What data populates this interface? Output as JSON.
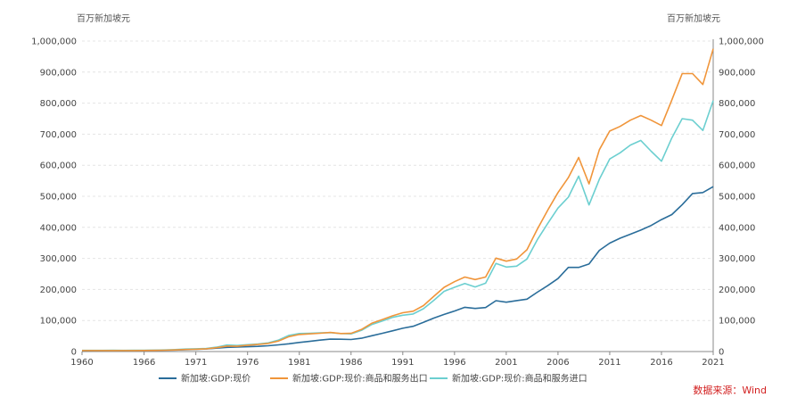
{
  "colors": {
    "gdp": "#2a6d9a",
    "exports": "#f0953a",
    "imports": "#6ccfd0",
    "grid": "#e4e4e4",
    "axis": "#888888",
    "source": "#d21f1f"
  },
  "source_text": "数据来源：Wind",
  "chart_data": {
    "type": "line",
    "y_unit_left": "百万新加坡元",
    "y_unit_right": "百万新加坡元",
    "xlim": [
      1960,
      2021
    ],
    "ylim": [
      0,
      1000000
    ],
    "x_ticks": [
      "1960",
      "1966",
      "1971",
      "1976",
      "1981",
      "1986",
      "1991",
      "1996",
      "2001",
      "2006",
      "2011",
      "2016",
      "2021"
    ],
    "y_ticks": [
      "0",
      "100,000",
      "200,000",
      "300,000",
      "400,000",
      "500,000",
      "600,000",
      "700,000",
      "800,000",
      "900,000",
      "1,000,000"
    ],
    "grid": true,
    "legend_position": "bottom",
    "x": [
      1960,
      1961,
      1962,
      1963,
      1964,
      1965,
      1966,
      1967,
      1968,
      1969,
      1970,
      1971,
      1972,
      1973,
      1974,
      1975,
      1976,
      1977,
      1978,
      1979,
      1980,
      1981,
      1982,
      1983,
      1984,
      1985,
      1986,
      1987,
      1988,
      1989,
      1990,
      1991,
      1992,
      1993,
      1994,
      1995,
      1996,
      1997,
      1998,
      1999,
      2000,
      2001,
      2002,
      2003,
      2004,
      2005,
      2006,
      2007,
      2008,
      2009,
      2010,
      2011,
      2012,
      2013,
      2014,
      2015,
      2016,
      2017,
      2018,
      2019,
      2020,
      2021
    ],
    "series": [
      {
        "name": "新加坡:GDP:现价",
        "color_key": "gdp",
        "values": [
          2150,
          2330,
          2520,
          2790,
          2720,
          2960,
          3330,
          3750,
          4310,
          5020,
          5800,
          6800,
          8200,
          11000,
          13600,
          14600,
          15500,
          16800,
          18700,
          21500,
          25100,
          29300,
          32700,
          36900,
          40000,
          39600,
          38900,
          42700,
          50900,
          58600,
          66800,
          75000,
          81400,
          94000,
          107800,
          119500,
          130400,
          142500,
          138700,
          141600,
          163800,
          158800,
          164200,
          168700,
          191000,
          212000,
          235000,
          271000,
          271000,
          282000,
          326000,
          349000,
          365000,
          378000,
          391000,
          406000,
          425000,
          441000,
          473000,
          509000,
          512000,
          531000
        ]
      },
      {
        "name": "新加坡:GDP:现价:商品和服务出口",
        "color_key": "exports",
        "values": [
          3200,
          3100,
          3050,
          3100,
          3100,
          3200,
          3400,
          3700,
          4200,
          5300,
          6500,
          7400,
          8800,
          12300,
          17600,
          17000,
          20300,
          22800,
          26100,
          34000,
          48000,
          55000,
          57000,
          59000,
          61500,
          58000,
          58500,
          71000,
          91000,
          103000,
          115000,
          125000,
          130000,
          148000,
          178000,
          207000,
          225000,
          240000,
          232000,
          240000,
          301000,
          291000,
          298000,
          328000,
          394000,
          455000,
          512000,
          560000,
          625000,
          540000,
          650000,
          710000,
          725000,
          745000,
          760000,
          745000,
          728000,
          810000,
          895000,
          895000,
          860000,
          975000
        ]
      },
      {
        "name": "新加坡:GDP:现价:商品和服务进口",
        "color_key": "imports",
        "values": [
          3800,
          3700,
          3750,
          3900,
          3800,
          3900,
          4100,
          4500,
          5200,
          6300,
          8000,
          8900,
          10000,
          14000,
          21000,
          19500,
          22000,
          24500,
          28000,
          37000,
          52000,
          58000,
          59000,
          60000,
          61000,
          58000,
          57000,
          68000,
          87000,
          98000,
          110000,
          117000,
          121000,
          138000,
          165000,
          194000,
          207000,
          219000,
          208000,
          220000,
          284000,
          272000,
          275000,
          298000,
          360000,
          412000,
          462000,
          497000,
          565000,
          472000,
          555000,
          620000,
          640000,
          665000,
          680000,
          645000,
          613000,
          688000,
          750000,
          745000,
          712000,
          808000
        ]
      }
    ]
  }
}
